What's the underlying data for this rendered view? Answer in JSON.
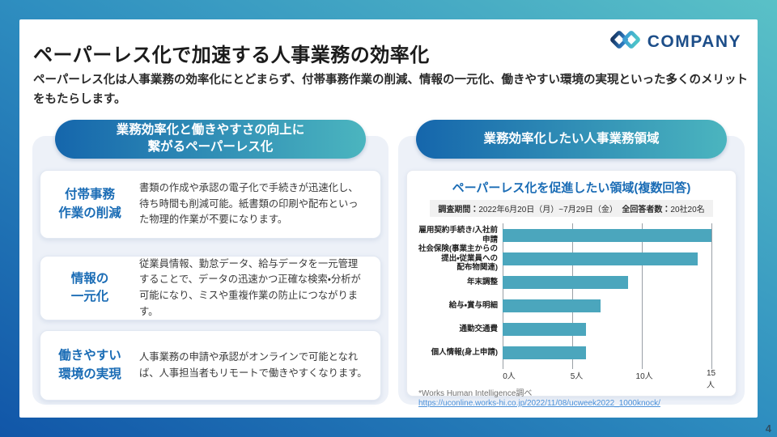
{
  "slide": {
    "title": "ペーパーレス化で加速する人事業務の効率化",
    "subtitle": "ペーパーレス化は人事業務の効率化にとどまらず、付帯事務作業の削減、情報の一元化、働きやすい環境の実現といった多くのメリットをもたらします。",
    "page_number": "4"
  },
  "logo": {
    "text": "COMPANY",
    "icon": "company-link-icon",
    "color_dark": "#1d4e89",
    "color_mid": "#2e7cc3",
    "color_teal": "#4cc3c9"
  },
  "left_panel": {
    "header_line1": "業務効率化と働きやすさの向上に",
    "header_line2": "繋がるペーパーレス化",
    "items": [
      {
        "title_lines": [
          "付帯事務",
          "作業の削減"
        ],
        "body": "書類の作成や承認の電子化で手続きが迅速化し、待ち時間も削減可能。紙書類の印刷や配布といった物理的作業が不要になります。"
      },
      {
        "title_lines": [
          "情報の",
          "一元化"
        ],
        "body": "従業員情報、勤怠データ、給与データを一元管理することで、データの迅速かつ正確な検索・分析が可能になり、ミスや重複作業の防止につながります。"
      },
      {
        "title_lines": [
          "働きやすい",
          "環境の実現"
        ],
        "body": "人事業務の申請や承認がオンラインで可能となれば、人事担当者もリモートで働きやすくなります。"
      }
    ]
  },
  "right_panel": {
    "header": "業務効率化したい人事業務領域",
    "survey": {
      "period_label": "調査期間：",
      "period_value": "2022年6月20日（月）~7月29日（金）",
      "respondents_label": "全回答者数：",
      "respondents_value": "20社20名"
    },
    "source_note": "*Works Human Intelligence調べ",
    "source_link": "https://uconline.works-hi.co.jp/2022/11/08/ucweek2022_1000knock/"
  },
  "chart_data": {
    "type": "bar",
    "orientation": "horizontal",
    "title": "ペーパーレス化を促進したい領域(複数回答)",
    "categories": [
      "雇用契約手続き/入社前申請",
      "社会保険(事業主からの提出・従業員への配布物関連)",
      "年末調整",
      "給与・賞与明細",
      "通勤交通費",
      "個人情報(身上申請)"
    ],
    "categories_lines": [
      [
        "雇用契約手続き/入社前",
        "申請"
      ],
      [
        "社会保険(事業主からの",
        "提出・従業員への",
        "配布物関連)"
      ],
      [
        "年末調整"
      ],
      [
        "給与・賞与明細"
      ],
      [
        "通勤交通費"
      ],
      [
        "個人情報(身上申請)"
      ]
    ],
    "values": [
      15,
      14,
      9,
      7,
      6,
      6
    ],
    "unit": "人",
    "x_ticks": [
      0,
      5,
      10,
      15
    ],
    "x_tick_labels": [
      "0人",
      "5人",
      "10人",
      "15人"
    ],
    "xlim": [
      0,
      15.8
    ],
    "bar_color": "#4BA6BD",
    "grid": true,
    "legend_position": "none"
  }
}
